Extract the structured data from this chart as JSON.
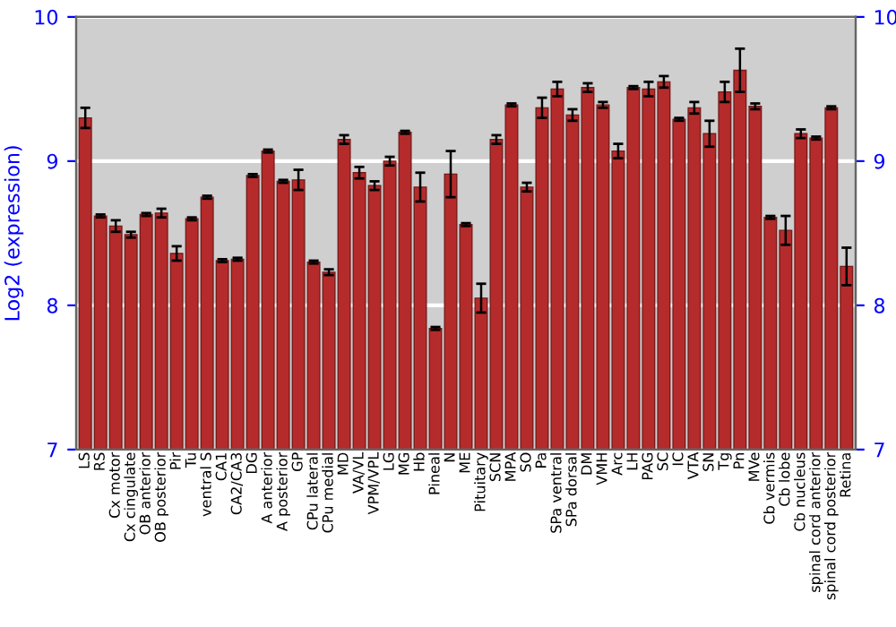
{
  "chart_data": {
    "type": "bar",
    "ylabel": "Log2 (expression)",
    "categories": [
      "LS",
      "RS",
      "Cx motor",
      "Cx cingulate",
      "OB anterior",
      "OB posterior",
      "Pir",
      "Tu",
      "ventral S",
      "CA1",
      "CA2/CA3",
      "DG",
      "A anterior",
      "A posterior",
      "GP",
      "CPu lateral",
      "CPu medial",
      "MD",
      "VA/VL",
      "VPM/VPL",
      "LG",
      "MG",
      "Hb",
      "Pineal",
      "N",
      "ME",
      "Pituitary",
      "SCN",
      "MPA",
      "SO",
      "Pa",
      "SPa ventral",
      "SPa dorsal",
      "DM",
      "VMH",
      "Arc",
      "LH",
      "PAG",
      "SC",
      "IC",
      "VTA",
      "SN",
      "Tg",
      "Pn",
      "MVe",
      "Cb vermis",
      "Cb lobe",
      "Cb nucleus",
      "spinal cord anterior",
      "spinal cord posterior",
      "Retina"
    ],
    "values": [
      9.3,
      8.62,
      8.55,
      8.49,
      8.63,
      8.64,
      8.36,
      8.6,
      8.75,
      8.31,
      8.32,
      8.9,
      9.07,
      8.86,
      8.87,
      8.3,
      8.23,
      9.15,
      8.92,
      8.83,
      9.0,
      9.2,
      8.82,
      7.84,
      8.91,
      8.56,
      8.05,
      9.15,
      9.39,
      8.82,
      9.37,
      9.5,
      9.32,
      9.51,
      9.39,
      9.07,
      9.51,
      9.5,
      9.55,
      9.29,
      9.37,
      9.19,
      9.48,
      9.63,
      9.38,
      8.61,
      8.52,
      9.19,
      9.16,
      9.37,
      8.27
    ],
    "errors": [
      0.07,
      0.01,
      0.04,
      0.02,
      0.01,
      0.03,
      0.05,
      0.01,
      0.01,
      0.01,
      0.01,
      0.01,
      0.01,
      0.01,
      0.07,
      0.01,
      0.02,
      0.03,
      0.04,
      0.03,
      0.03,
      0.01,
      0.1,
      0.01,
      0.16,
      0.01,
      0.1,
      0.03,
      0.01,
      0.03,
      0.07,
      0.05,
      0.04,
      0.03,
      0.02,
      0.05,
      0.01,
      0.05,
      0.04,
      0.01,
      0.04,
      0.09,
      0.07,
      0.15,
      0.02,
      0.01,
      0.1,
      0.03,
      0.01,
      0.01,
      0.13
    ],
    "color": "#b52b2b",
    "ylim": [
      7,
      10
    ],
    "yticks": [
      7,
      8,
      9,
      10
    ],
    "y2lim": [
      7,
      10
    ],
    "y2ticks": [
      7,
      8,
      9,
      10
    ],
    "grid": "y"
  }
}
